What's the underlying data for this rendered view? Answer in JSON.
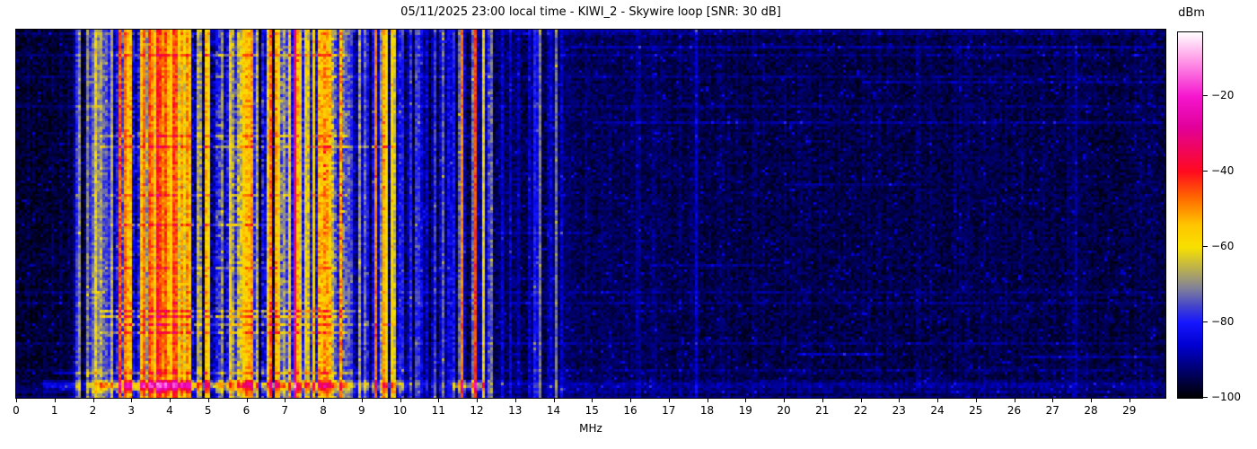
{
  "chart_data": {
    "type": "heatmap",
    "title": "05/11/2025 23:00 local time - KIWI_2 - Skywire loop [SNR: 30 dB]",
    "xlabel": "MHz",
    "ylabel": "",
    "x_range": [
      0,
      29.94
    ],
    "x_ticks": [
      0,
      1,
      2,
      3,
      4,
      5,
      6,
      7,
      8,
      9,
      10,
      11,
      12,
      13,
      14,
      15,
      16,
      17,
      18,
      19,
      20,
      21,
      22,
      23,
      24,
      25,
      26,
      27,
      28,
      29
    ],
    "grid": false,
    "colorbar": {
      "label": "dBm",
      "vmax": -3,
      "vmin": -100,
      "ticks": [
        {
          "v": -20,
          "label": "−20"
        },
        {
          "v": -40,
          "label": "−40"
        },
        {
          "v": -60,
          "label": "−60"
        },
        {
          "v": -80,
          "label": "−80"
        },
        {
          "v": -100,
          "label": "−100"
        }
      ],
      "stops": [
        {
          "v": -100,
          "c": "#000000"
        },
        {
          "v": -92,
          "c": "#000077"
        },
        {
          "v": -86,
          "c": "#0000d0"
        },
        {
          "v": -80,
          "c": "#1616ff"
        },
        {
          "v": -76,
          "c": "#4040cf"
        },
        {
          "v": -71,
          "c": "#80809a"
        },
        {
          "v": -66,
          "c": "#b8ae52"
        },
        {
          "v": -60,
          "c": "#f8e000"
        },
        {
          "v": -54,
          "c": "#ffc400"
        },
        {
          "v": -47,
          "c": "#ff6a00"
        },
        {
          "v": -40,
          "c": "#ff0a1e"
        },
        {
          "v": -28,
          "c": "#e1009b"
        },
        {
          "v": -20,
          "c": "#f516cf"
        },
        {
          "v": -10,
          "c": "#ff9fe8"
        },
        {
          "v": -3,
          "c": "#ffffff"
        }
      ]
    },
    "noise_floor": [
      [
        0,
        1.5,
        -96.5
      ],
      [
        1.5,
        2.6,
        -90
      ],
      [
        2.6,
        8.55,
        -86.5
      ],
      [
        8.55,
        10.3,
        -90.5
      ],
      [
        10.3,
        12.4,
        -91.5
      ],
      [
        12.4,
        14.5,
        -93
      ],
      [
        14.5,
        17,
        -94
      ],
      [
        17,
        29.94,
        -95
      ]
    ],
    "activity_regions": [
      [
        0,
        1.55,
        0.06
      ],
      [
        1.55,
        2.6,
        0.55
      ],
      [
        2.6,
        8.55,
        1.0
      ],
      [
        8.55,
        10.1,
        0.55
      ],
      [
        10.1,
        12.4,
        0.4
      ],
      [
        12.4,
        14.3,
        0.22
      ],
      [
        14.3,
        29.94,
        0.06
      ]
    ],
    "bands": [
      [
        1.62,
        0.03,
        -66
      ],
      [
        1.88,
        0.03,
        -68
      ],
      [
        2.03,
        0.035,
        -60
      ],
      [
        2.2,
        0.03,
        -70
      ],
      [
        2.32,
        0.03,
        -67
      ],
      [
        2.48,
        0.03,
        -64
      ],
      [
        2.72,
        0.05,
        -55
      ],
      [
        2.87,
        0.06,
        -50
      ],
      [
        3.0,
        0.04,
        -56
      ],
      [
        3.3,
        0.08,
        -48
      ],
      [
        3.5,
        0.09,
        -44
      ],
      [
        3.7,
        0.1,
        -42
      ],
      [
        3.9,
        0.1,
        -44
      ],
      [
        4.1,
        0.09,
        -46
      ],
      [
        4.3,
        0.07,
        -50
      ],
      [
        4.5,
        0.05,
        -54
      ],
      [
        4.75,
        0.04,
        -58
      ],
      [
        5.0,
        0.05,
        -56
      ],
      [
        5.35,
        0.035,
        -62
      ],
      [
        5.6,
        0.035,
        -60
      ],
      [
        5.95,
        0.05,
        -52
      ],
      [
        6.1,
        0.06,
        -50
      ],
      [
        6.25,
        0.04,
        -56
      ],
      [
        6.6,
        0.035,
        -58
      ],
      [
        6.8,
        0.045,
        -56
      ],
      [
        7.0,
        0.035,
        -60
      ],
      [
        7.27,
        0.05,
        -36
      ],
      [
        7.55,
        0.04,
        -58
      ],
      [
        7.75,
        0.05,
        -56
      ],
      [
        7.95,
        0.04,
        -58
      ],
      [
        8.12,
        0.035,
        -62
      ],
      [
        8.35,
        0.03,
        -68
      ],
      [
        8.75,
        0.03,
        -72
      ],
      [
        8.95,
        0.03,
        -70
      ],
      [
        9.1,
        0.03,
        -68
      ],
      [
        9.35,
        0.03,
        -50
      ],
      [
        9.6,
        0.045,
        -42
      ],
      [
        9.8,
        0.03,
        -54
      ],
      [
        10.05,
        0.03,
        -74
      ],
      [
        10.25,
        0.03,
        -76
      ],
      [
        10.45,
        0.03,
        -74
      ],
      [
        11.1,
        0.03,
        -78
      ],
      [
        11.6,
        0.035,
        -48
      ],
      [
        11.95,
        0.035,
        -44
      ],
      [
        12.16,
        0.03,
        -62
      ],
      [
        12.33,
        0.03,
        -74
      ],
      [
        13.52,
        0.03,
        -76
      ],
      [
        13.62,
        0.03,
        -68
      ],
      [
        14.05,
        0.03,
        -72
      ],
      [
        16.2,
        0.03,
        -88
      ],
      [
        17.7,
        0.03,
        -86
      ],
      [
        27.6,
        0.03,
        -90
      ]
    ],
    "bottom_streak": {
      "row_weights": {
        "7": 0.45,
        "6": 1.0,
        "5": 1.0,
        "4": 0.6,
        "3": 0.2,
        "2": 0.08
      },
      "boosts": [
        [
          0,
          0.7,
          2
        ],
        [
          0.7,
          2.2,
          12
        ],
        [
          2.2,
          2.9,
          24
        ],
        [
          2.9,
          4.8,
          30
        ],
        [
          4.8,
          6.3,
          24
        ],
        [
          6.3,
          8.6,
          22
        ],
        [
          8.6,
          10.2,
          16
        ],
        [
          10.2,
          11.35,
          6
        ],
        [
          11.35,
          12.2,
          24
        ],
        [
          12.2,
          29.94,
          5
        ]
      ]
    },
    "h_streaks": [
      [
        0,
        8.5,
        29.9,
        4
      ],
      [
        6,
        14.5,
        29.9,
        5
      ],
      [
        9,
        2.6,
        8.6,
        7
      ],
      [
        19,
        22.0,
        29.9,
        4
      ],
      [
        34,
        15.0,
        29.9,
        4.5
      ],
      [
        39,
        2.2,
        8.6,
        8
      ],
      [
        43,
        2.2,
        9.9,
        9
      ],
      [
        57,
        20.0,
        23.5,
        4
      ],
      [
        61,
        2.3,
        8.6,
        7
      ],
      [
        72,
        2.4,
        6.5,
        8
      ],
      [
        75,
        12.5,
        15.0,
        4
      ],
      [
        87,
        16.5,
        19.5,
        4
      ],
      [
        88,
        2.3,
        8.6,
        6
      ],
      [
        104,
        2.2,
        9.0,
        11
      ],
      [
        106,
        2.2,
        8.6,
        12
      ],
      [
        109,
        2.3,
        9.9,
        9
      ],
      [
        112,
        2.2,
        8.6,
        10
      ],
      [
        120,
        20.3,
        22.6,
        7
      ],
      [
        121,
        26.2,
        29.7,
        6
      ],
      [
        127,
        1.0,
        9.0,
        9
      ]
    ],
    "render": {
      "cell": 3,
      "seed": 1299709
    }
  }
}
